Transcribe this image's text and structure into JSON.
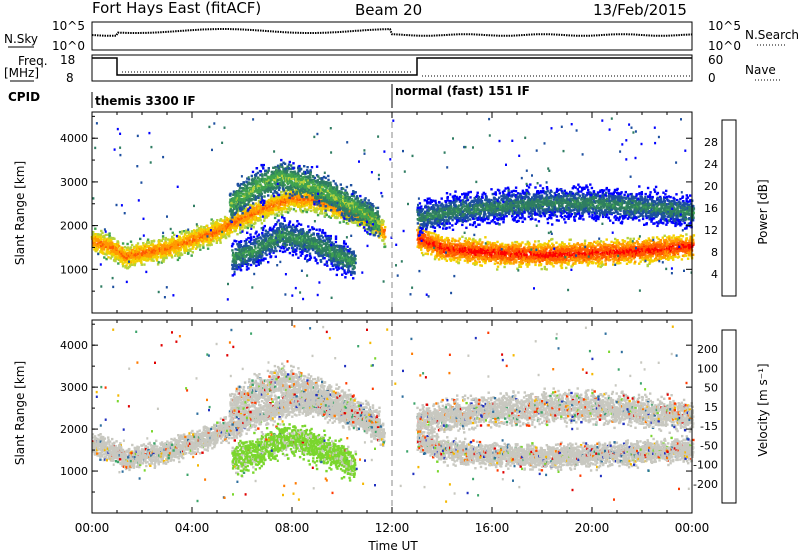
{
  "header": {
    "station": "Fort Hays East (fitACF)",
    "beam": "Beam 20",
    "date": "13/Feb/2015"
  },
  "top_panels": {
    "nsky_label": "N.Sky",
    "nsky_ticks": [
      "10^5",
      "10^0"
    ],
    "nsearch_label": "N.Search",
    "nsearch_ticks": [
      "10^5",
      "10^0"
    ],
    "freq_label": "Freq.",
    "freq_unit": "[MHz]",
    "freq_ticks": [
      "18",
      "8"
    ],
    "nave_label": "Nave",
    "nave_ticks": [
      "60",
      "0"
    ],
    "cpid_label": "CPID",
    "cpid_segments": [
      {
        "label": "themis 3300 IF",
        "start_hour": 0,
        "end_hour": 12
      },
      {
        "label": "normal (fast) 151 IF",
        "start_hour": 12,
        "end_hour": 24
      }
    ]
  },
  "chart_data": [
    {
      "type": "heatmap",
      "panel": "power",
      "ylabel": "Slant Range [km]",
      "ylim": [
        0,
        4600
      ],
      "yticks": [
        "1000",
        "2000",
        "3000",
        "4000"
      ],
      "colorbar_label": "Power [dB]",
      "colorbar_ticks": [
        "4",
        "8",
        "12",
        "16",
        "20",
        "24",
        "28"
      ],
      "colors": [
        "#0000ff",
        "#1d4fa0",
        "#2f7d62",
        "#3fa24e",
        "#b4d23c",
        "#f4d000",
        "#ff9a00",
        "#ff5a00",
        "#ff0000"
      ],
      "bands": [
        {
          "name": "main low echo",
          "t": [
            0,
            0.4,
            0.8,
            1.0,
            1.3,
            2,
            3,
            4,
            5,
            6,
            7,
            8,
            9,
            10,
            11,
            11.7
          ],
          "r": [
            1650,
            1600,
            1500,
            1450,
            1300,
            1400,
            1500,
            1700,
            1900,
            2200,
            2450,
            2650,
            2600,
            2400,
            2200,
            1850
          ],
          "level": 22
        },
        {
          "name": "upper arc",
          "t": [
            5.5,
            6.5,
            7.5,
            8.5,
            9.5,
            10.5,
            11.5
          ],
          "r": [
            2500,
            2900,
            3150,
            3000,
            2750,
            2450,
            2050
          ],
          "level": 12
        },
        {
          "name": "lower arc",
          "t": [
            5.6,
            6.5,
            7.5,
            8.5,
            9.5,
            10.5
          ],
          "r": [
            1300,
            1450,
            1800,
            1700,
            1450,
            1150
          ],
          "level": 9
        },
        {
          "name": "night main",
          "t": [
            13,
            14,
            15,
            16,
            17,
            18,
            19,
            20,
            21,
            22,
            23,
            24
          ],
          "r": [
            1750,
            1500,
            1450,
            1400,
            1380,
            1350,
            1380,
            1400,
            1420,
            1450,
            1500,
            1550
          ],
          "level": 26
        },
        {
          "name": "night upper",
          "t": [
            13,
            15,
            17,
            19,
            21,
            23,
            24
          ],
          "r": [
            2200,
            2400,
            2500,
            2550,
            2500,
            2400,
            2300
          ],
          "level": 8
        }
      ]
    },
    {
      "type": "heatmap",
      "panel": "velocity",
      "ylabel": "Slant Range [km]",
      "ylim": [
        0,
        4600
      ],
      "yticks": [
        "1000",
        "2000",
        "3000",
        "4000"
      ],
      "colorbar_label": "Velocity [m s⁻¹]",
      "colorbar_ticks": [
        "200",
        "100",
        "50",
        "15",
        "-15",
        "-50",
        "-100",
        "-200"
      ],
      "colors": [
        "#2030c0",
        "#2e6f9e",
        "#3ca46a",
        "#7ad62d",
        "#c8c8c0",
        "#c8c8c0",
        "#f5b800",
        "#ff7a00",
        "#ff3a00",
        "#e00000"
      ],
      "xlabel": "Time UT",
      "xticks": [
        "00:00",
        "04:00",
        "08:00",
        "12:00",
        "16:00",
        "20:00",
        "00:00"
      ],
      "xlim": [
        0,
        24
      ]
    }
  ]
}
